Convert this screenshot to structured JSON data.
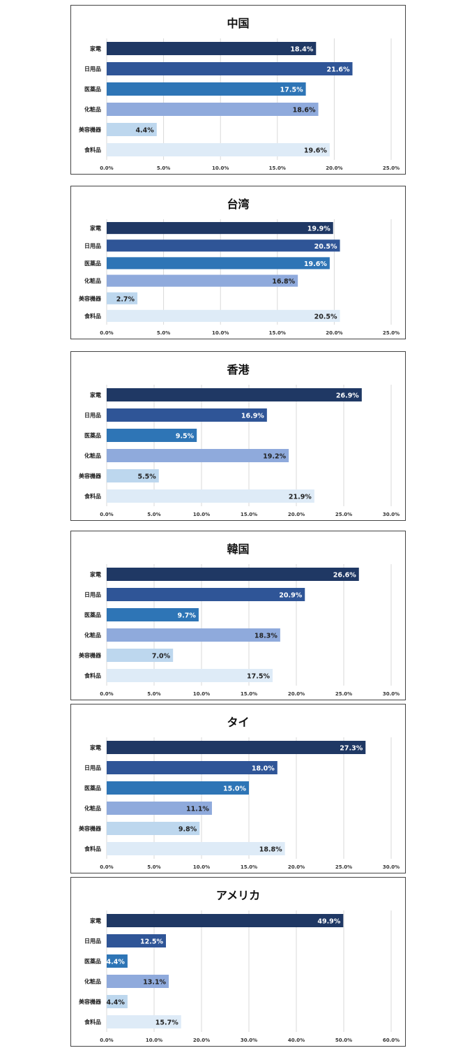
{
  "colors": [
    "#1f3864",
    "#2f5597",
    "#2e75b6",
    "#8faadc",
    "#bdd7ee",
    "#deebf7"
  ],
  "label_colors": [
    "#ffffff",
    "#ffffff",
    "#ffffff",
    "#222222",
    "#222222",
    "#222222"
  ],
  "gridline_color": "#d9d9d9",
  "chart_data": [
    {
      "type": "bar",
      "orientation": "horizontal",
      "title": "中国",
      "categories": [
        "家電",
        "日用品",
        "医薬品",
        "化粧品",
        "美容機器",
        "食料品"
      ],
      "values": [
        18.4,
        21.6,
        17.5,
        18.6,
        4.4,
        19.6
      ],
      "value_labels": [
        "18.4%",
        "21.6%",
        "17.5%",
        "18.6%",
        "4.4%",
        "19.6%"
      ],
      "xlim": [
        0,
        25
      ],
      "ticks": [
        "0.0%",
        "5.0%",
        "10.0%",
        "15.0%",
        "20.0%",
        "25.0%"
      ],
      "grid": true,
      "legend": "none"
    },
    {
      "type": "bar",
      "orientation": "horizontal",
      "title": "台湾",
      "categories": [
        "家電",
        "日用品",
        "医薬品",
        "化粧品",
        "美容機器",
        "食料品"
      ],
      "values": [
        19.9,
        20.5,
        19.6,
        16.8,
        2.7,
        20.5
      ],
      "value_labels": [
        "19.9%",
        "20.5%",
        "19.6%",
        "16.8%",
        "2.7%",
        "20.5%"
      ],
      "xlim": [
        0,
        25
      ],
      "ticks": [
        "0.0%",
        "5.0%",
        "10.0%",
        "15.0%",
        "20.0%",
        "25.0%"
      ],
      "grid": true,
      "legend": "none"
    },
    {
      "type": "bar",
      "orientation": "horizontal",
      "title": "香港",
      "categories": [
        "家電",
        "日用品",
        "医薬品",
        "化粧品",
        "美容機器",
        "食料品"
      ],
      "values": [
        26.9,
        16.9,
        9.5,
        19.2,
        5.5,
        21.9
      ],
      "value_labels": [
        "26.9%",
        "16.9%",
        "9.5%",
        "19.2%",
        "5.5%",
        "21.9%"
      ],
      "xlim": [
        0,
        30
      ],
      "ticks": [
        "0.0%",
        "5.0%",
        "10.0%",
        "15.0%",
        "20.0%",
        "25.0%",
        "30.0%"
      ],
      "grid": true,
      "legend": "none"
    },
    {
      "type": "bar",
      "orientation": "horizontal",
      "title": "韓国",
      "categories": [
        "家電",
        "日用品",
        "医薬品",
        "化粧品",
        "美容機器",
        "食料品"
      ],
      "values": [
        26.6,
        20.9,
        9.7,
        18.3,
        7.0,
        17.5
      ],
      "value_labels": [
        "26.6%",
        "20.9%",
        "9.7%",
        "18.3%",
        "7.0%",
        "17.5%"
      ],
      "xlim": [
        0,
        30
      ],
      "ticks": [
        "0.0%",
        "5.0%",
        "10.0%",
        "15.0%",
        "20.0%",
        "25.0%",
        "30.0%"
      ],
      "grid": true,
      "legend": "none"
    },
    {
      "type": "bar",
      "orientation": "horizontal",
      "title": "タイ",
      "categories": [
        "家電",
        "日用品",
        "医薬品",
        "化粧品",
        "美容機器",
        "食料品"
      ],
      "values": [
        27.3,
        18.0,
        15.0,
        11.1,
        9.8,
        18.8
      ],
      "value_labels": [
        "27.3%",
        "18.0%",
        "15.0%",
        "11.1%",
        "9.8%",
        "18.8%"
      ],
      "xlim": [
        0,
        30
      ],
      "ticks": [
        "0.0%",
        "5.0%",
        "10.0%",
        "15.0%",
        "20.0%",
        "25.0%",
        "30.0%"
      ],
      "grid": true,
      "legend": "none"
    },
    {
      "type": "bar",
      "orientation": "horizontal",
      "title": "アメリカ",
      "categories": [
        "家電",
        "日用品",
        "医薬品",
        "化粧品",
        "美容機器",
        "食料品"
      ],
      "values": [
        49.9,
        12.5,
        4.4,
        13.1,
        4.4,
        15.7
      ],
      "value_labels": [
        "49.9%",
        "12.5%",
        "4.4%",
        "13.1%",
        "4.4%",
        "15.7%"
      ],
      "xlim": [
        0,
        60
      ],
      "ticks": [
        "0.0%",
        "10.0%",
        "20.0%",
        "30.0%",
        "40.0%",
        "50.0%",
        "60.0%"
      ],
      "grid": true,
      "legend": "none"
    }
  ]
}
